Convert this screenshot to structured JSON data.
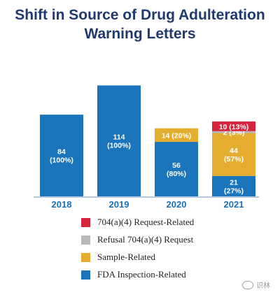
{
  "chart_data": {
    "type": "bar",
    "stacked": true,
    "title": "Shift in Source of Drug Adulteration Warning Letters",
    "categories": [
      "2018",
      "2019",
      "2020",
      "2021"
    ],
    "ylim": [
      0,
      130
    ],
    "series": [
      {
        "name": "FDA Inspection-Related",
        "color": "#1b75bb",
        "values": [
          84,
          114,
          56,
          21
        ],
        "labels": [
          "84\n(100%)",
          "114\n(100%)",
          "56\n(80%)",
          "21\n(27%)"
        ]
      },
      {
        "name": "Sample-Related",
        "color": "#e5ad2f",
        "values": [
          0,
          0,
          14,
          44
        ],
        "labels": [
          "",
          "",
          "14 (20%)",
          "44\n(57%)"
        ]
      },
      {
        "name": "Refusal 704(a)(4) Request",
        "color": "#b9b9b9",
        "values": [
          0,
          0,
          0,
          2
        ],
        "labels": [
          "",
          "",
          "",
          "2 (3%)"
        ]
      },
      {
        "name": "704(a)(4) Request-Related",
        "color": "#d6243c",
        "values": [
          0,
          0,
          0,
          10
        ],
        "labels": [
          "",
          "",
          "",
          "10 (13%)"
        ]
      }
    ],
    "legend": {
      "position": "bottom",
      "order": [
        "704(a)(4) Request-Related",
        "Refusal 704(a)(4) Request",
        "Sample-Related",
        "FDA Inspection-Related"
      ]
    },
    "grid": false
  },
  "watermark": {
    "text": "识林"
  }
}
